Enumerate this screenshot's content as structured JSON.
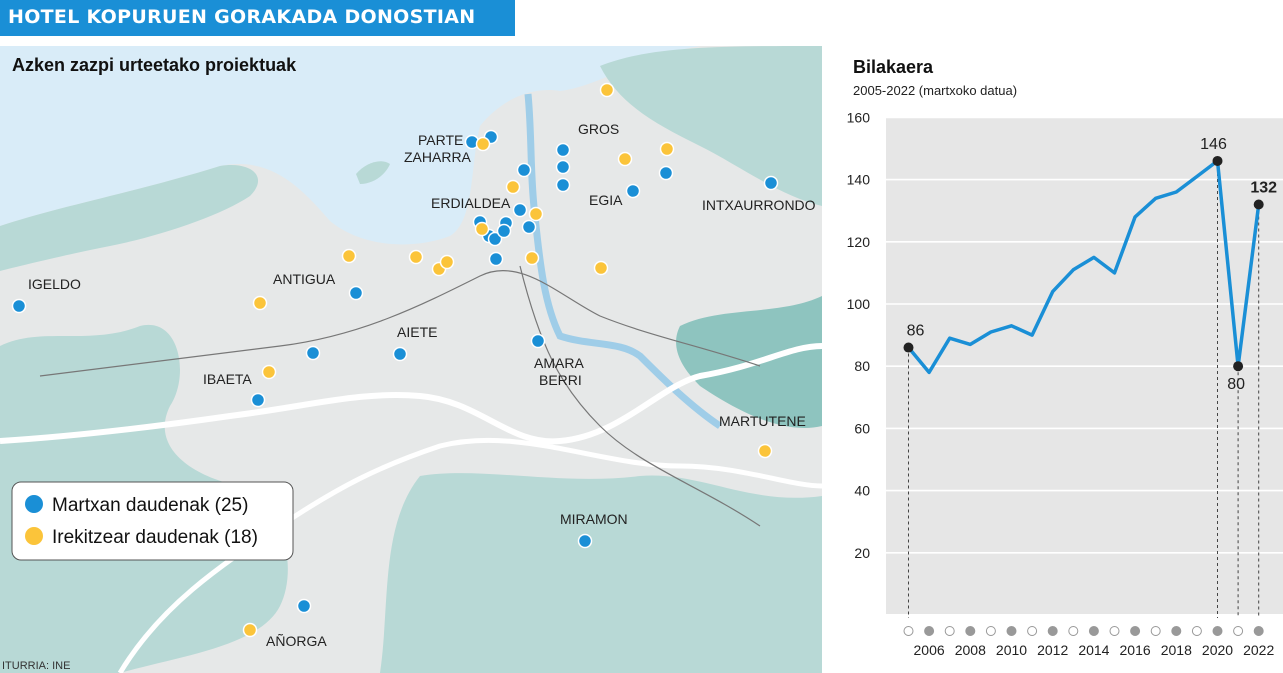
{
  "header": {
    "title": "HOTEL KOPURUEN GORAKADA DONOSTIAN"
  },
  "map": {
    "title": "Azken zazpi urteetako proiektuak",
    "source": "ITURRIA: INE",
    "colors": {
      "sea": "#d9ecf8",
      "land": "#e6e8e8",
      "green": "#b8d9d6",
      "dark_green": "#8ec4bf",
      "roads": "#ffffff",
      "open": "#1a8fd6",
      "opening": "#fbc43a"
    },
    "neighborhoods": [
      "PARTE",
      "ZAHARRA",
      "GROS",
      "ERDIALDEA",
      "EGIA",
      "INTXAURRONDO",
      "IGELDO",
      "ANTIGUA",
      "AIETE",
      "AMARA",
      "BERRI",
      "IBAETA",
      "MARTUTENE",
      "MIRAMON",
      "AÑORGA"
    ],
    "legend": [
      {
        "label": "Martxan daudenak (25)",
        "color": "#1a8fd6"
      },
      {
        "label": "Irekitzear daudenak (18)",
        "color": "#fbc43a"
      }
    ]
  },
  "chart_data": {
    "type": "line",
    "title": "Bilakaera",
    "subtitle": "2005-2022 (martxoko datua)",
    "x": [
      2005,
      2006,
      2007,
      2008,
      2009,
      2010,
      2011,
      2012,
      2013,
      2014,
      2015,
      2016,
      2017,
      2018,
      2019,
      2020,
      2021,
      2022
    ],
    "values": [
      86,
      78,
      89,
      87,
      91,
      93,
      90,
      104,
      111,
      115,
      110,
      128,
      134,
      136,
      141,
      146,
      80,
      132
    ],
    "xtick_labels": [
      "2006",
      "2008",
      "2010",
      "2012",
      "2014",
      "2016",
      "2018",
      "2020",
      "2022"
    ],
    "yticks": [
      20,
      40,
      60,
      80,
      100,
      120,
      140,
      160
    ],
    "ylim": [
      0,
      160
    ],
    "annotations": [
      {
        "x": 2005,
        "y": 86,
        "label": "86",
        "bold": false
      },
      {
        "x": 2020,
        "y": 146,
        "label": "146",
        "bold": false
      },
      {
        "x": 2021,
        "y": 80,
        "label": "80",
        "bold": false
      },
      {
        "x": 2022,
        "y": 132,
        "label": "132",
        "bold": true
      }
    ],
    "grid": true,
    "colors": {
      "line": "#1a8fd6",
      "background": "#e6e6e6",
      "marker": "#222222"
    }
  }
}
